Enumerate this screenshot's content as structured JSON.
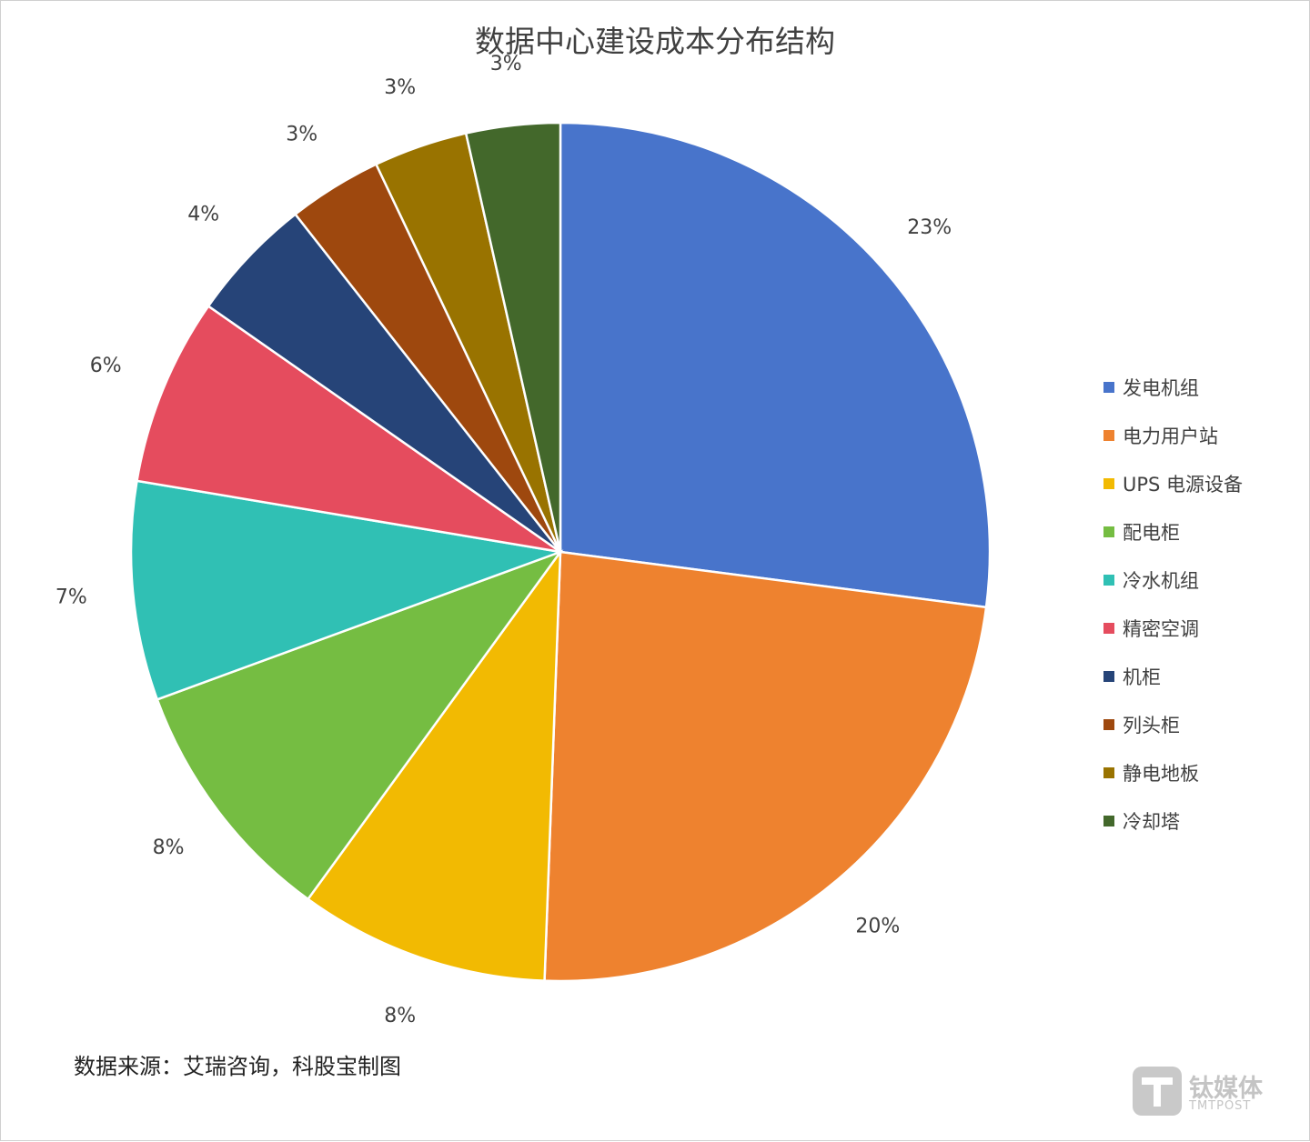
{
  "chart_data": {
    "type": "pie",
    "title": "数据中心建设成本分布结构",
    "categories": [
      "发电机组",
      "电力用户站",
      "UPS 电源设备",
      "配电柜",
      "冷水机组",
      "精密空调",
      "机柜",
      "列头柜",
      "静电地板",
      "冷却塔"
    ],
    "values": [
      23,
      20,
      8,
      8,
      7,
      6,
      4,
      3,
      3,
      3
    ],
    "value_labels": [
      "23%",
      "20%",
      "8%",
      "8%",
      "7%",
      "6%",
      "4%",
      "3%",
      "3%",
      "3%"
    ],
    "colors": [
      "#4874CB",
      "#EE822F",
      "#F2BA02",
      "#75BD42",
      "#30C0B4",
      "#E54C5E",
      "#264478",
      "#9E480E",
      "#997300",
      "#43682B"
    ],
    "legend_position": "right",
    "start_angle": "12 o'clock",
    "direction": "clockwise"
  },
  "source": "数据来源：艾瑞咨询，科股宝制图",
  "watermark": {
    "name": "钛媒体",
    "sub": "TMTPOST"
  }
}
